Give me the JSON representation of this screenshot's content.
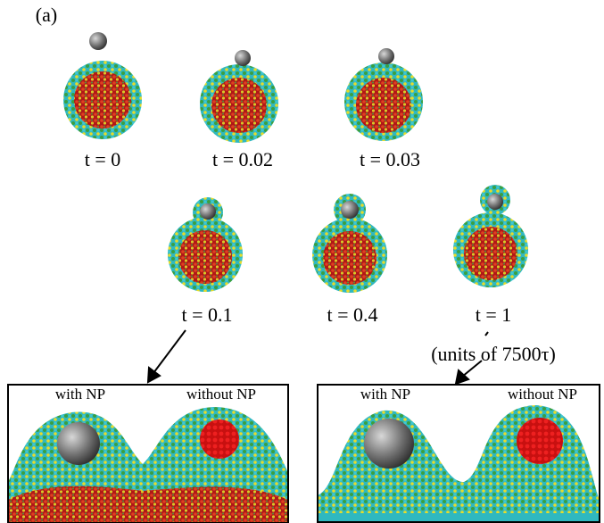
{
  "panel_label": "(a)",
  "snapshots": [
    {
      "label": "t = 0"
    },
    {
      "label": "t = 0.02"
    },
    {
      "label": "t = 0.03"
    },
    {
      "label": "t = 0.1"
    },
    {
      "label": "t = 0.4"
    },
    {
      "label": "t = 1"
    }
  ],
  "units_note": "(units of 7500τ)",
  "zooms": [
    {
      "left_label": "with NP",
      "right_label": "without NP"
    },
    {
      "left_label": "with NP",
      "right_label": "without NP"
    }
  ]
}
